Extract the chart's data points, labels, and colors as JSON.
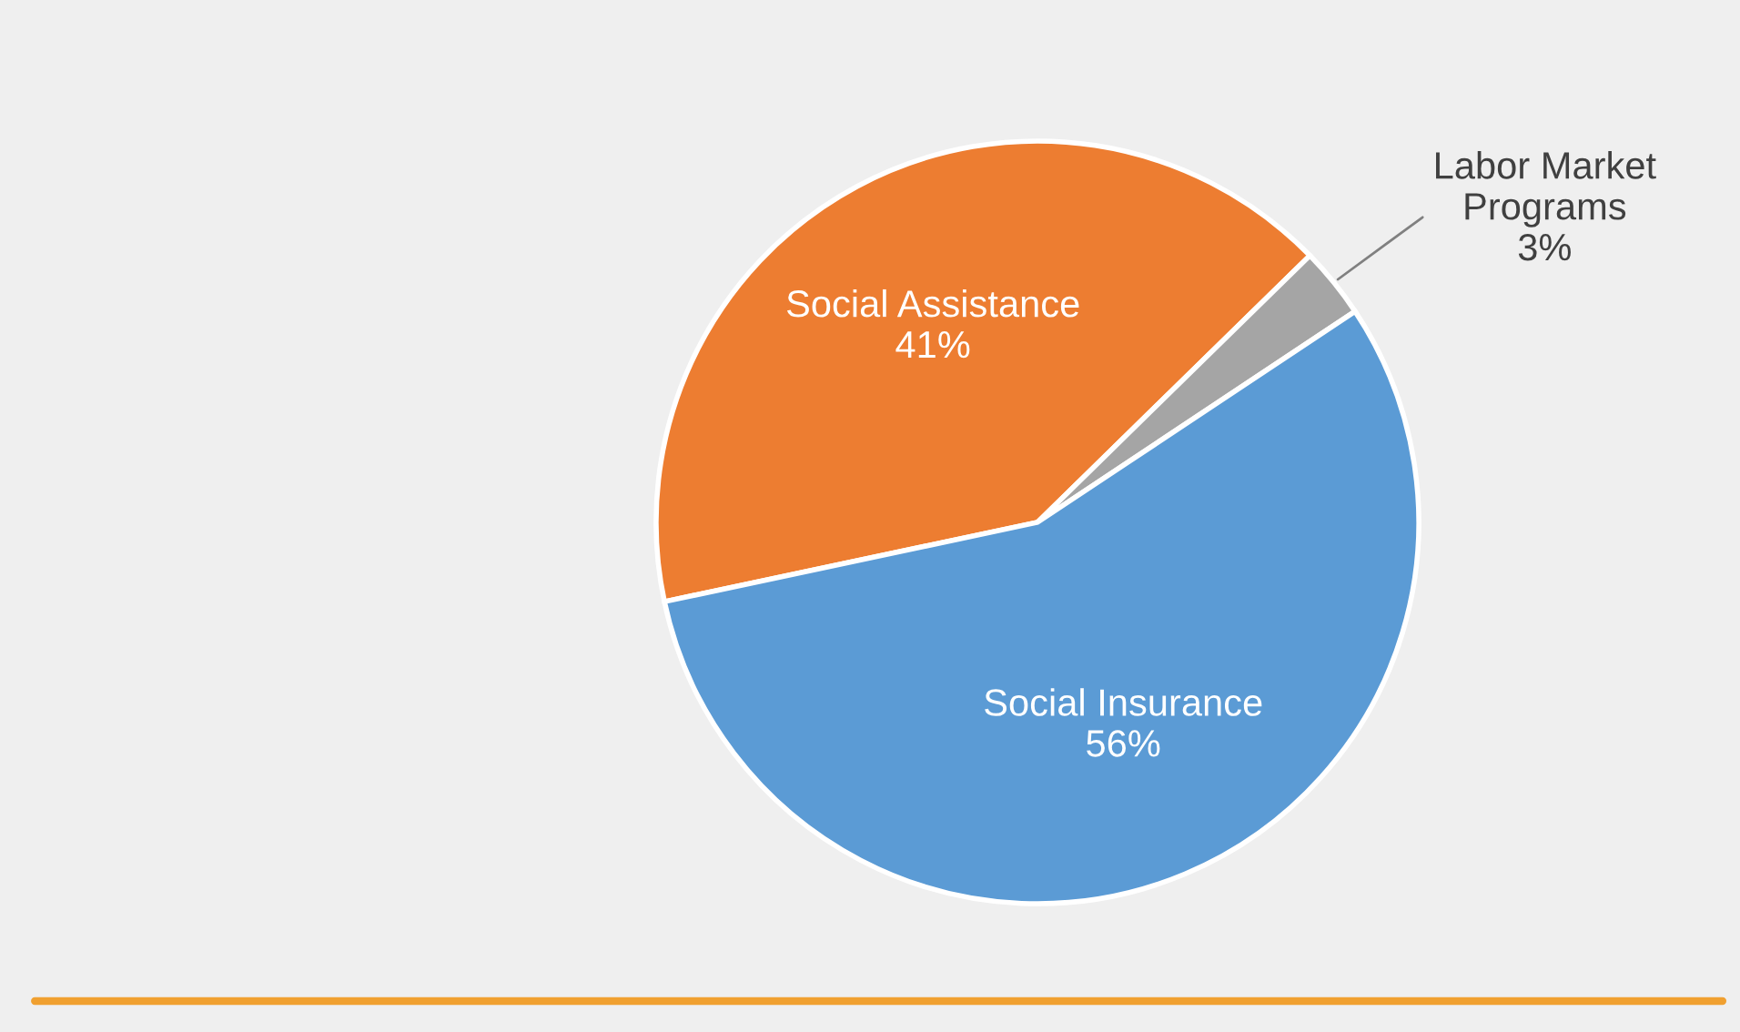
{
  "chart_data": {
    "type": "pie",
    "categories": [
      "Social Assistance",
      "Labor Market Programs",
      "Social Insurance"
    ],
    "values": [
      41,
      3,
      56
    ],
    "value_labels": [
      "41%",
      "3%",
      "56%"
    ],
    "colors": [
      "#ed7d31",
      "#a5a5a5",
      "#5b9bd5"
    ],
    "legend": false
  }
}
